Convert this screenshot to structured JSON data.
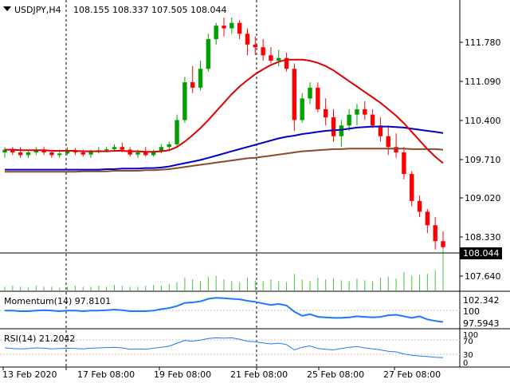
{
  "header": {
    "symbol": "USDJPY,H4",
    "ohlc": "108.155 108.337 107.505 108.044"
  },
  "momentum": {
    "label": "Momentum(14) 97.8101",
    "ticks": [
      "102.342",
      "100",
      "97.5943"
    ]
  },
  "rsi": {
    "label": "RSI(14) 21.2042",
    "ticks": [
      "100",
      "70",
      "30",
      "0"
    ]
  },
  "price_axis": {
    "ticks": [
      "111.780",
      "111.090",
      "110.400",
      "109.710",
      "109.020",
      "108.330",
      "107.640"
    ],
    "current": "108.044"
  },
  "time_axis": {
    "ticks": [
      "13 Feb 2020",
      "17 Feb 08:00",
      "19 Feb 08:00",
      "21 Feb 08:00",
      "25 Feb 08:00",
      "27 Feb 08:00"
    ]
  },
  "colors": {
    "bull": "#00a000",
    "bear": "#ff0000",
    "ma_red": "#e00000",
    "ma_blue": "#0000c8",
    "ma_brown": "#8b4a2a",
    "indicator": "#1e78ff",
    "volume": "#3cc83c",
    "separator": "#000000"
  },
  "chart_data": {
    "type": "candlestick",
    "symbol": "USDJPY",
    "timeframe": "H4",
    "ylim": [
      107.3,
      112.3
    ],
    "candles": [
      [
        109.8,
        109.9,
        109.7,
        109.85
      ],
      [
        109.85,
        109.9,
        109.75,
        109.8
      ],
      [
        109.8,
        109.9,
        109.7,
        109.75
      ],
      [
        109.75,
        109.85,
        109.7,
        109.8
      ],
      [
        109.8,
        109.9,
        109.75,
        109.85
      ],
      [
        109.85,
        109.9,
        109.75,
        109.8
      ],
      [
        109.8,
        109.85,
        109.7,
        109.75
      ],
      [
        109.75,
        109.85,
        109.7,
        109.78
      ],
      [
        109.78,
        109.9,
        109.75,
        109.82
      ],
      [
        109.82,
        109.88,
        109.75,
        109.8
      ],
      [
        109.8,
        109.85,
        109.72,
        109.76
      ],
      [
        109.76,
        109.85,
        109.7,
        109.82
      ],
      [
        109.82,
        109.9,
        109.78,
        109.84
      ],
      [
        109.84,
        109.9,
        109.8,
        109.86
      ],
      [
        109.86,
        109.95,
        109.82,
        109.9
      ],
      [
        109.9,
        109.98,
        109.8,
        109.85
      ],
      [
        109.85,
        109.9,
        109.72,
        109.76
      ],
      [
        109.76,
        109.85,
        109.7,
        109.8
      ],
      [
        109.8,
        109.9,
        109.72,
        109.75
      ],
      [
        109.75,
        109.85,
        109.72,
        109.82
      ],
      [
        109.82,
        109.95,
        109.78,
        109.9
      ],
      [
        109.9,
        110.0,
        109.85,
        109.95
      ],
      [
        109.95,
        110.5,
        109.9,
        110.4
      ],
      [
        110.4,
        111.2,
        110.35,
        111.1
      ],
      [
        111.1,
        111.4,
        110.9,
        111.0
      ],
      [
        111.0,
        111.5,
        110.95,
        111.35
      ],
      [
        111.35,
        112.0,
        111.3,
        111.9
      ],
      [
        111.9,
        112.2,
        111.8,
        112.15
      ],
      [
        112.15,
        112.3,
        111.95,
        112.1
      ],
      [
        112.1,
        112.3,
        112.0,
        112.2
      ],
      [
        112.2,
        112.25,
        111.9,
        112.0
      ],
      [
        112.0,
        112.1,
        111.6,
        111.8
      ],
      [
        111.8,
        111.95,
        111.6,
        111.75
      ],
      [
        111.75,
        111.9,
        111.5,
        111.6
      ],
      [
        111.6,
        111.75,
        111.45,
        111.5
      ],
      [
        111.5,
        111.7,
        111.4,
        111.55
      ],
      [
        111.55,
        111.65,
        111.3,
        111.35
      ],
      [
        111.35,
        111.45,
        110.2,
        110.4
      ],
      [
        110.4,
        110.9,
        110.35,
        110.8
      ],
      [
        110.8,
        111.1,
        110.7,
        111.0
      ],
      [
        111.0,
        111.1,
        110.55,
        110.6
      ],
      [
        110.6,
        110.8,
        110.3,
        110.45
      ],
      [
        110.45,
        110.6,
        110.0,
        110.1
      ],
      [
        110.1,
        110.4,
        109.9,
        110.3
      ],
      [
        110.3,
        110.6,
        110.2,
        110.5
      ],
      [
        110.5,
        110.7,
        110.3,
        110.6
      ],
      [
        110.6,
        110.75,
        110.4,
        110.5
      ],
      [
        110.5,
        110.6,
        110.25,
        110.3
      ],
      [
        110.3,
        110.45,
        110.0,
        110.1
      ],
      [
        110.1,
        110.3,
        109.75,
        109.9
      ],
      [
        109.9,
        110.15,
        109.7,
        109.8
      ],
      [
        109.8,
        109.9,
        109.3,
        109.4
      ],
      [
        109.4,
        109.45,
        108.8,
        108.9
      ],
      [
        108.9,
        109.0,
        108.6,
        108.7
      ],
      [
        108.7,
        108.75,
        108.3,
        108.45
      ],
      [
        108.45,
        108.6,
        108.0,
        108.155
      ],
      [
        108.155,
        108.337,
        107.505,
        108.044
      ]
    ],
    "ma_red": [
      109.85,
      109.85,
      109.84,
      109.84,
      109.84,
      109.84,
      109.83,
      109.83,
      109.83,
      109.83,
      109.82,
      109.82,
      109.82,
      109.82,
      109.83,
      109.83,
      109.82,
      109.82,
      109.81,
      109.81,
      109.82,
      109.84,
      109.9,
      110.0,
      110.12,
      110.25,
      110.4,
      110.56,
      110.72,
      110.88,
      111.02,
      111.14,
      111.25,
      111.34,
      111.42,
      111.48,
      111.52,
      111.52,
      111.52,
      111.5,
      111.46,
      111.4,
      111.32,
      111.22,
      111.12,
      111.02,
      110.92,
      110.82,
      110.72,
      110.6,
      110.48,
      110.34,
      110.18,
      110.02,
      109.86,
      109.72,
      109.6
    ],
    "ma_blue": [
      109.48,
      109.48,
      109.48,
      109.48,
      109.48,
      109.48,
      109.48,
      109.48,
      109.48,
      109.48,
      109.48,
      109.48,
      109.48,
      109.49,
      109.49,
      109.5,
      109.5,
      109.5,
      109.51,
      109.51,
      109.52,
      109.54,
      109.57,
      109.6,
      109.63,
      109.66,
      109.7,
      109.74,
      109.78,
      109.82,
      109.86,
      109.9,
      109.94,
      109.98,
      110.02,
      110.06,
      110.09,
      110.11,
      110.14,
      110.16,
      110.18,
      110.2,
      110.21,
      110.22,
      110.24,
      110.26,
      110.27,
      110.28,
      110.28,
      110.28,
      110.27,
      110.26,
      110.24,
      110.22,
      110.2,
      110.18,
      110.16
    ],
    "ma_brown": [
      109.44,
      109.44,
      109.44,
      109.44,
      109.44,
      109.44,
      109.44,
      109.44,
      109.44,
      109.44,
      109.45,
      109.45,
      109.45,
      109.45,
      109.46,
      109.46,
      109.46,
      109.46,
      109.47,
      109.47,
      109.48,
      109.49,
      109.51,
      109.53,
      109.55,
      109.57,
      109.59,
      109.61,
      109.63,
      109.65,
      109.67,
      109.69,
      109.7,
      109.72,
      109.74,
      109.76,
      109.78,
      109.8,
      109.82,
      109.83,
      109.84,
      109.85,
      109.86,
      109.86,
      109.87,
      109.87,
      109.87,
      109.87,
      109.87,
      109.87,
      109.87,
      109.87,
      109.86,
      109.86,
      109.86,
      109.86,
      109.85
    ],
    "momentum_ylim": [
      96.8,
      103.3
    ],
    "momentum": [
      100.0,
      100.0,
      99.9,
      99.9,
      100.0,
      100.1,
      100.0,
      99.9,
      100.0,
      100.0,
      99.9,
      100.0,
      100.0,
      100.1,
      100.2,
      100.1,
      99.9,
      99.9,
      99.9,
      100.0,
      100.3,
      100.5,
      100.9,
      101.5,
      101.6,
      101.8,
      102.3,
      102.5,
      102.4,
      102.3,
      102.2,
      101.9,
      101.7,
      101.4,
      101.1,
      101.3,
      101.0,
      99.8,
      99.0,
      99.3,
      98.8,
      98.7,
      98.6,
      98.6,
      98.7,
      98.9,
      98.8,
      98.7,
      98.8,
      99.1,
      99.2,
      98.9,
      98.6,
      98.9,
      98.3,
      98.0,
      97.8101
    ],
    "rsi": [
      50,
      48,
      47,
      48,
      50,
      49,
      47,
      48,
      49,
      48,
      47,
      49,
      50,
      51,
      52,
      50,
      46,
      47,
      46,
      49,
      52,
      55,
      64,
      72,
      70,
      73,
      78,
      80,
      79,
      80,
      76,
      70,
      68,
      65,
      62,
      64,
      60,
      44,
      52,
      56,
      48,
      46,
      44,
      48,
      52,
      54,
      50,
      47,
      44,
      40,
      38,
      32,
      28,
      26,
      24,
      22,
      21.2042
    ],
    "volume": [
      4,
      5,
      4,
      3,
      5,
      4,
      4,
      3,
      4,
      5,
      4,
      4,
      5,
      4,
      6,
      5,
      4,
      4,
      5,
      6,
      5,
      7,
      9,
      14,
      12,
      10,
      15,
      16,
      12,
      10,
      9,
      14,
      11,
      10,
      12,
      10,
      9,
      18,
      12,
      10,
      14,
      12,
      13,
      11,
      10,
      13,
      11,
      10,
      14,
      15,
      13,
      20,
      16,
      17,
      18,
      22,
      45
    ]
  }
}
